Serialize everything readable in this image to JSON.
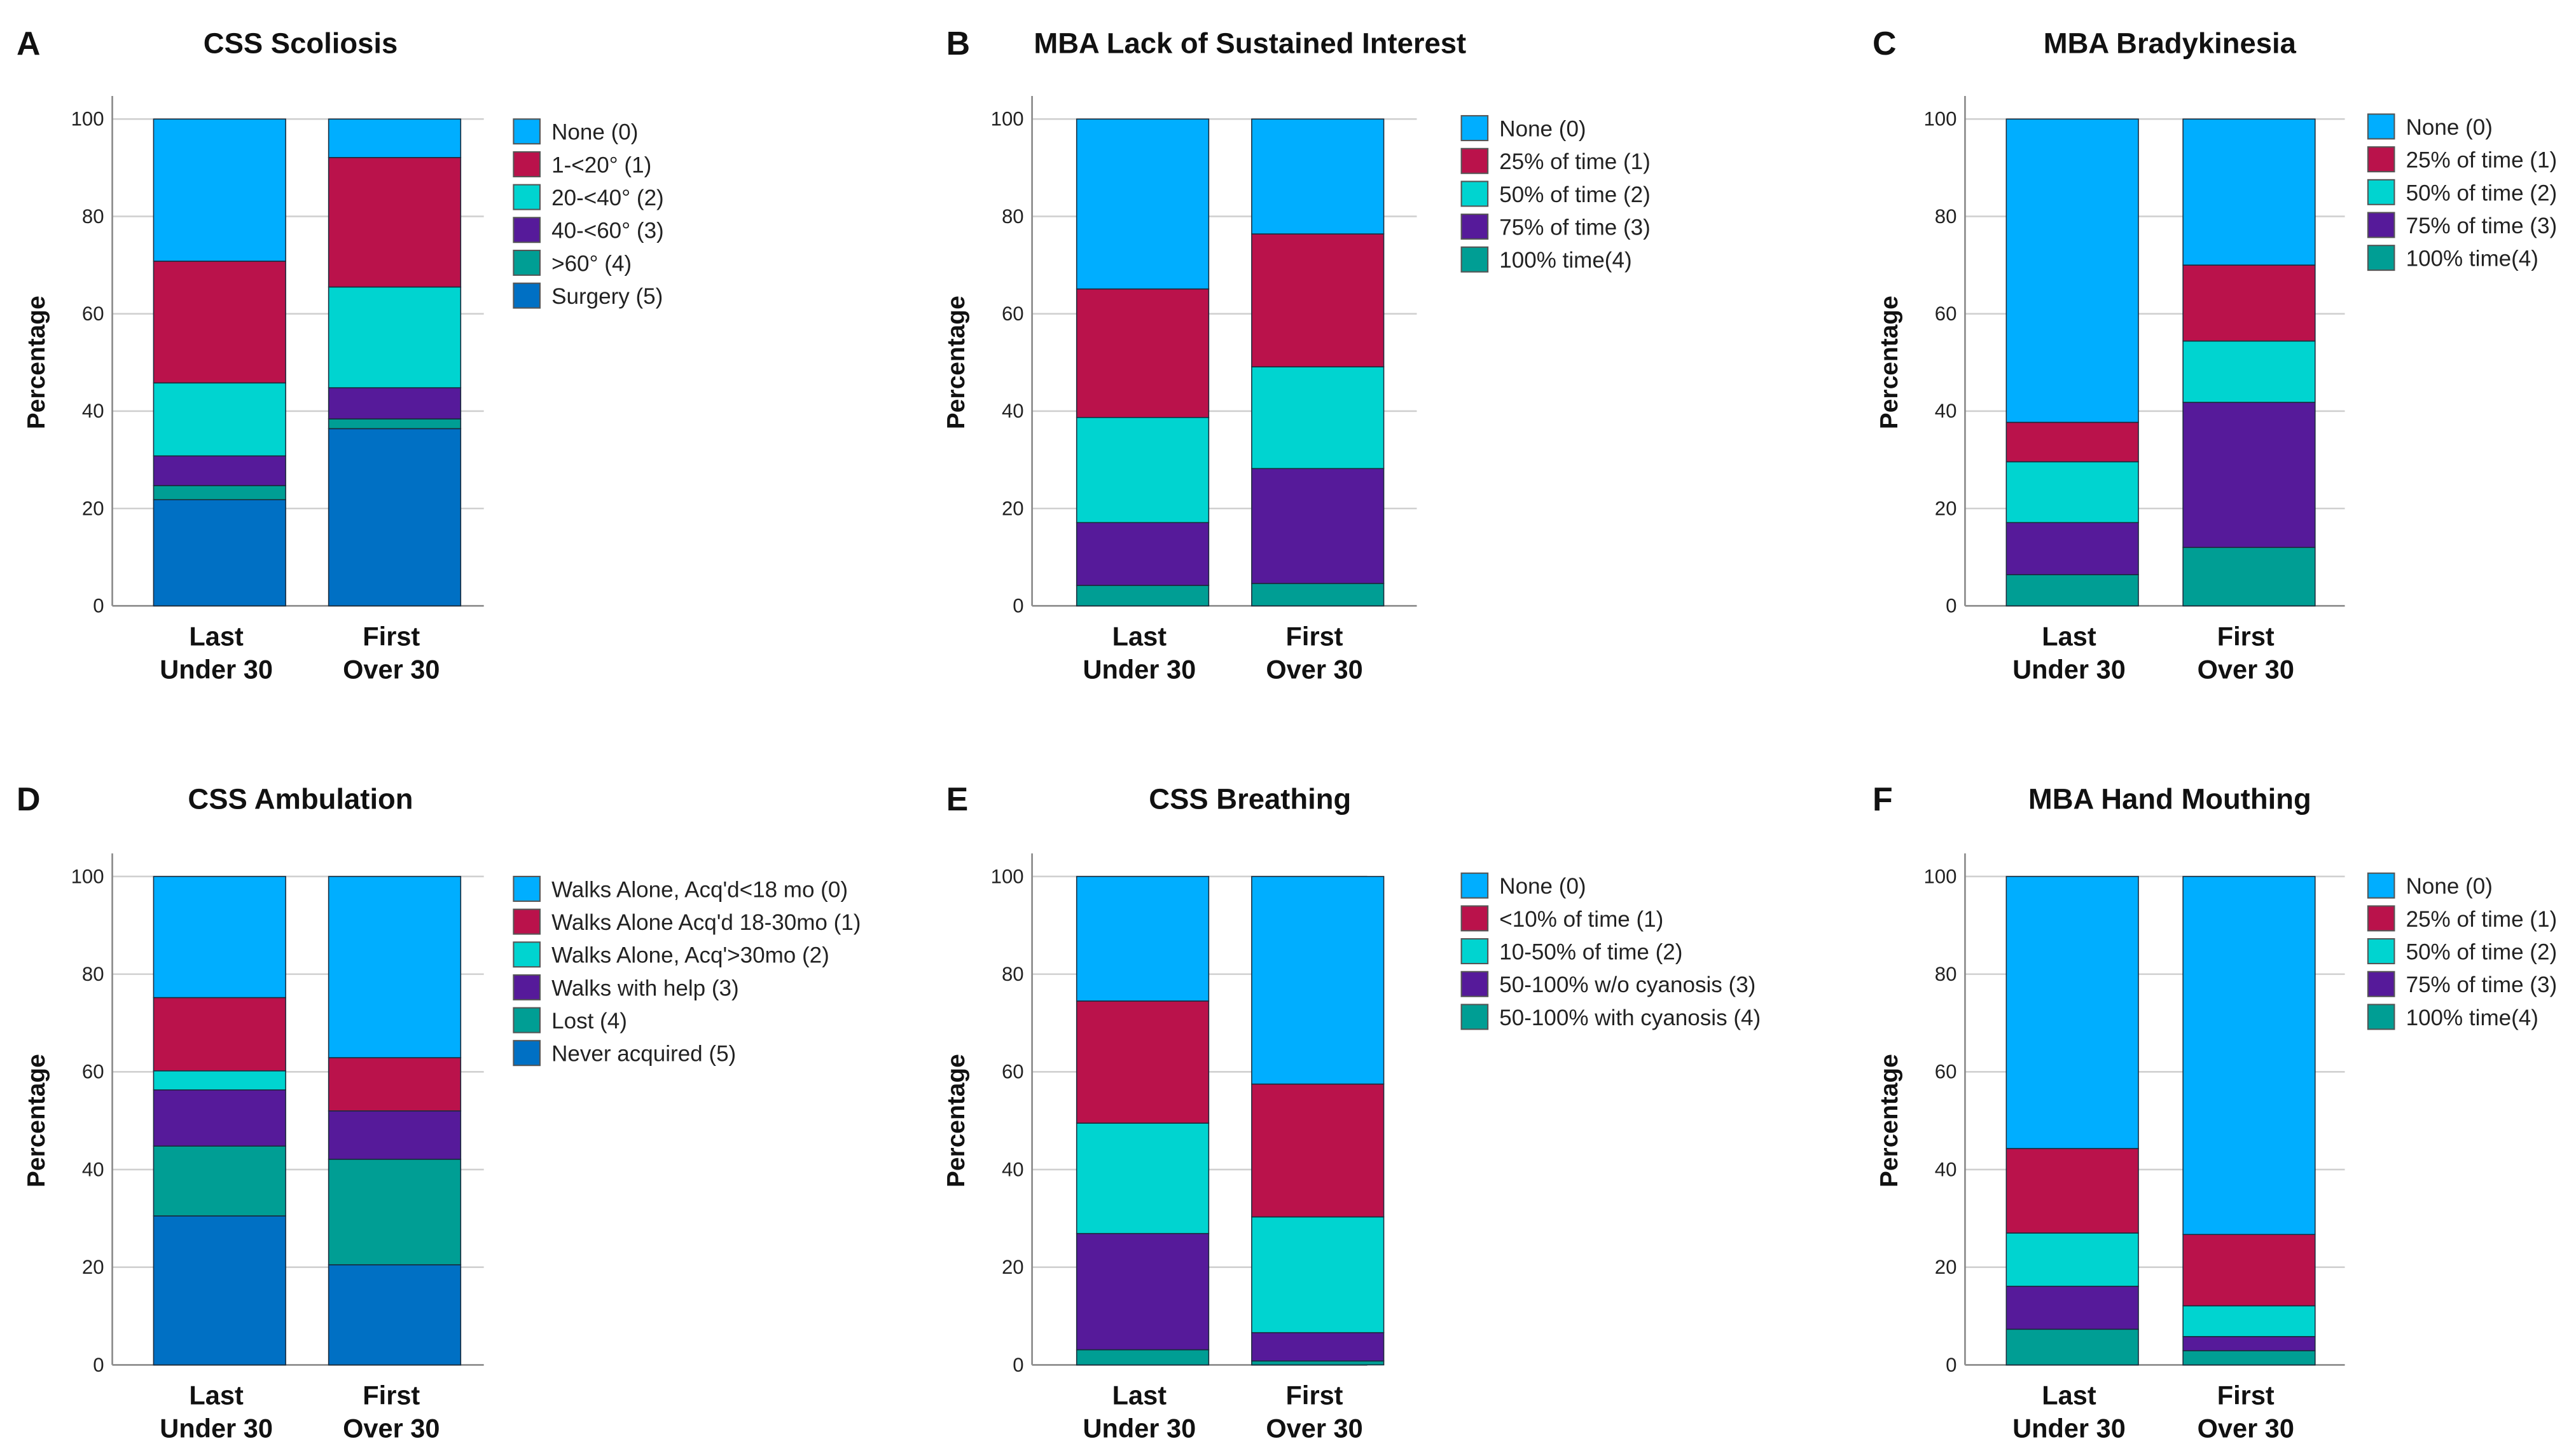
{
  "colors": [
    "#00AEFF",
    "#BA124B",
    "#00D4D0",
    "#561A9A",
    "#009E94",
    "#0070C4"
  ],
  "chart_data": [
    {
      "type": "bar",
      "stacked": true,
      "panel": "A",
      "title": "CSS Scoliosis",
      "ylabel": "Percentage",
      "ylim": [
        0,
        100
      ],
      "yticks": [
        0,
        20,
        40,
        60,
        80,
        100
      ],
      "grid": true,
      "legend": "right",
      "categories": [
        [
          "Last",
          "Under 30"
        ],
        [
          "First",
          "Over 30"
        ]
      ],
      "series": [
        {
          "name": "None (0)",
          "values": [
            29.2,
            7.9
          ]
        },
        {
          "name": "1-<20° (1)",
          "values": [
            25.0,
            26.6
          ]
        },
        {
          "name": "20-<40° (2)",
          "values": [
            15.0,
            20.7
          ]
        },
        {
          "name": "40-<60° (3)",
          "values": [
            6.1,
            6.4
          ]
        },
        {
          "name": ">60° (4)",
          "values": [
            2.9,
            2.0
          ]
        },
        {
          "name": "Surgery (5)",
          "values": [
            21.8,
            36.4
          ]
        }
      ]
    },
    {
      "type": "bar",
      "stacked": true,
      "panel": "B",
      "title": "MBA Lack of Sustained Interest",
      "ylabel": "Percentage",
      "ylim": [
        0,
        100
      ],
      "yticks": [
        0,
        20,
        40,
        60,
        80,
        100
      ],
      "grid": true,
      "legend": "right",
      "categories": [
        [
          "Last",
          "Under 30"
        ],
        [
          "First",
          "Over 30"
        ]
      ],
      "series": [
        {
          "name": "None (0)",
          "values": [
            34.9,
            23.6
          ]
        },
        {
          "name": "25% of time (1)",
          "values": [
            26.4,
            27.3
          ]
        },
        {
          "name": "50% of time (2)",
          "values": [
            21.6,
            20.9
          ]
        },
        {
          "name": "75% of time (3)",
          "values": [
            12.9,
            23.6
          ]
        },
        {
          "name": "100% time(4)",
          "values": [
            4.2,
            4.6
          ]
        }
      ]
    },
    {
      "type": "bar",
      "stacked": true,
      "panel": "C",
      "title": "MBA Bradykinesia",
      "ylabel": "Percentage",
      "ylim": [
        0,
        100
      ],
      "yticks": [
        0,
        20,
        40,
        60,
        80,
        100
      ],
      "grid": true,
      "legend": "right",
      "categories": [
        [
          "Last",
          "Under 30"
        ],
        [
          "First",
          "Over 30"
        ]
      ],
      "series": [
        {
          "name": "None (0)",
          "values": [
            62.3,
            30.0
          ]
        },
        {
          "name": "25% of time (1)",
          "values": [
            8.1,
            15.6
          ]
        },
        {
          "name": "50% of time (2)",
          "values": [
            12.5,
            12.6
          ]
        },
        {
          "name": "75% of time (3)",
          "values": [
            10.7,
            29.8
          ]
        },
        {
          "name": "100% time(4)",
          "values": [
            6.4,
            12.0
          ]
        }
      ]
    },
    {
      "type": "bar",
      "stacked": true,
      "panel": "D",
      "title": "CSS Ambulation",
      "ylabel": "Percentage",
      "ylim": [
        0,
        100
      ],
      "yticks": [
        0,
        20,
        40,
        60,
        80,
        100
      ],
      "grid": true,
      "legend": "right",
      "categories": [
        [
          "Last",
          "Under 30"
        ],
        [
          "First",
          "Over 30"
        ]
      ],
      "series": [
        {
          "name": "Walks Alone, Acq'd<18 mo (0)",
          "values": [
            24.8,
            37.1
          ]
        },
        {
          "name": "Walks Alone Acq'd 18-30mo (1)",
          "values": [
            15.0,
            10.9
          ]
        },
        {
          "name": "Walks Alone, Acq'>30mo (2)",
          "values": [
            3.9,
            0
          ]
        },
        {
          "name": "Walks with help (3)",
          "values": [
            11.5,
            9.9
          ]
        },
        {
          "name": "Lost (4)",
          "values": [
            14.3,
            21.6
          ]
        },
        {
          "name": "Never acquired (5)",
          "values": [
            30.5,
            20.5
          ]
        }
      ]
    },
    {
      "type": "bar",
      "stacked": true,
      "panel": "E",
      "title": "CSS Breathing",
      "ylabel": "Percentage",
      "ylim": [
        0,
        100
      ],
      "yticks": [
        0,
        20,
        40,
        60,
        80,
        100
      ],
      "grid": true,
      "legend": "right",
      "categories": [
        [
          "Last",
          "Under 30"
        ],
        [
          "First",
          "Over 30"
        ]
      ],
      "series": [
        {
          "name": "None (0)",
          "values": [
            25.5,
            42.5
          ]
        },
        {
          "name": "<10% of time (1)",
          "values": [
            25.0,
            27.2
          ]
        },
        {
          "name": "10-50% of time (2)",
          "values": [
            22.6,
            23.7
          ]
        },
        {
          "name": "50-100% w/o cyanosis (3)",
          "values": [
            23.8,
            5.8
          ]
        },
        {
          "name": "50-100% with cyanosis (4)",
          "values": [
            3.1,
            0.8
          ]
        }
      ]
    },
    {
      "type": "bar",
      "stacked": true,
      "panel": "F",
      "title": "MBA Hand Mouthing",
      "ylabel": "Percentage",
      "ylim": [
        0,
        100
      ],
      "yticks": [
        0,
        20,
        40,
        60,
        80,
        100
      ],
      "grid": true,
      "legend": "right",
      "categories": [
        [
          "Last",
          "Under 30"
        ],
        [
          "First",
          "Over 30"
        ]
      ],
      "series": [
        {
          "name": "None (0)",
          "values": [
            55.7,
            73.3
          ]
        },
        {
          "name": "25% of time (1)",
          "values": [
            17.3,
            14.6
          ]
        },
        {
          "name": "50% of time (2)",
          "values": [
            10.9,
            6.3
          ]
        },
        {
          "name": "75% of time (3)",
          "values": [
            8.8,
            2.9
          ]
        },
        {
          "name": "100% time(4)",
          "values": [
            7.3,
            2.9
          ]
        }
      ]
    }
  ]
}
